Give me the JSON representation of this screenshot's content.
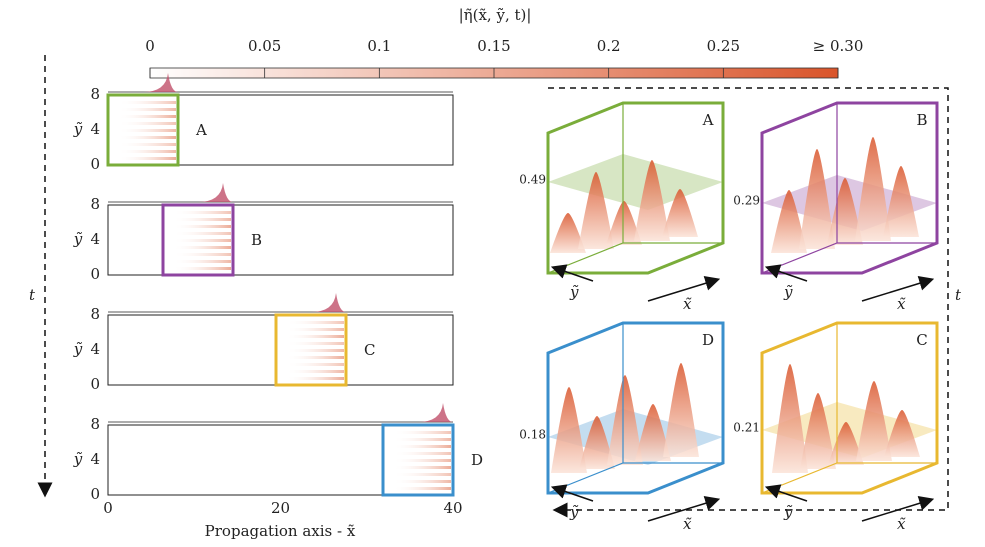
{
  "colorbar": {
    "title": "|η̃(x̃, ỹ, t)|",
    "ticks": [
      "0",
      "0.05",
      "0.1",
      "0.15",
      "0.2",
      "0.25",
      "≥ 0.30"
    ]
  },
  "time_label_left": "t",
  "time_label_right": "t",
  "strips": [
    {
      "label": "A",
      "y_axis_label": "ỹ",
      "yticks": [
        "8",
        "4",
        "0"
      ]
    },
    {
      "label": "B",
      "y_axis_label": "ỹ",
      "yticks": [
        "8",
        "4",
        "0"
      ]
    },
    {
      "label": "C",
      "y_axis_label": "ỹ",
      "yticks": [
        "8",
        "4",
        "0"
      ]
    },
    {
      "label": "D",
      "y_axis_label": "ỹ",
      "yticks": [
        "8",
        "4",
        "0"
      ]
    }
  ],
  "x_axis": {
    "label": "Propagation axis - x̃",
    "ticks": [
      "0",
      "20",
      "40"
    ]
  },
  "panels": [
    {
      "label": "A",
      "level": "0.49",
      "x_label": "x̃",
      "y_label": "ỹ"
    },
    {
      "label": "B",
      "level": "0.29",
      "x_label": "x̃",
      "y_label": "ỹ"
    },
    {
      "label": "D",
      "level": "0.18",
      "x_label": "x̃",
      "y_label": "ỹ"
    },
    {
      "label": "C",
      "level": "0.21",
      "x_label": "x̃",
      "y_label": "ỹ"
    }
  ]
}
